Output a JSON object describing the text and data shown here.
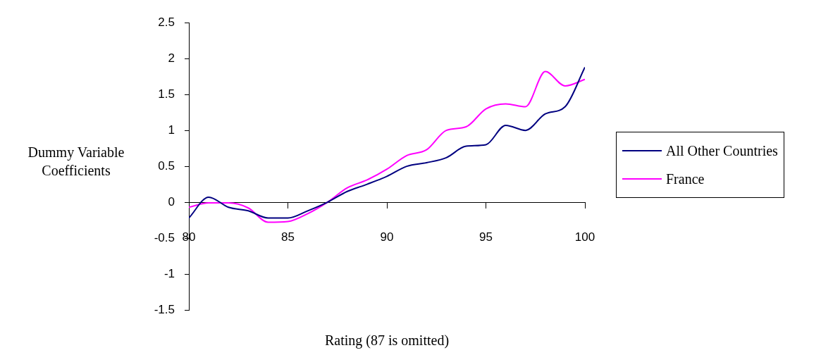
{
  "chart_data": {
    "type": "line",
    "xlabel": "Rating (87 is omitted)",
    "ylabel": "Dummy Variable Coefficients",
    "x": [
      80,
      81,
      82,
      83,
      84,
      85,
      86,
      87,
      88,
      89,
      90,
      91,
      92,
      93,
      94,
      95,
      96,
      97,
      98,
      99,
      100
    ],
    "series": [
      {
        "name": "All Other Countries",
        "color": "#000080",
        "values": [
          -0.22,
          0.07,
          -0.07,
          -0.12,
          -0.22,
          -0.22,
          -0.12,
          0,
          0.15,
          0.25,
          0.36,
          0.5,
          0.55,
          0.62,
          0.78,
          0.8,
          1.07,
          1.0,
          1.23,
          1.33,
          1.88
        ]
      },
      {
        "name": "France",
        "color": "#ff00ff",
        "values": [
          -0.07,
          -0.01,
          -0.01,
          -0.08,
          -0.28,
          -0.27,
          -0.16,
          0,
          0.2,
          0.31,
          0.46,
          0.65,
          0.73,
          1.0,
          1.05,
          1.3,
          1.37,
          1.33,
          1.82,
          1.62,
          1.71
        ]
      }
    ],
    "xlim": [
      80,
      100
    ],
    "xticks": [
      80,
      85,
      90,
      95,
      100
    ],
    "ylim": [
      -1.5,
      2.5
    ],
    "yticks": [
      -1.5,
      -1,
      -0.5,
      0,
      0.5,
      1,
      1.5,
      2,
      2.5
    ],
    "grid": false,
    "legend": "right",
    "marker": "none",
    "line_style": "solid"
  }
}
